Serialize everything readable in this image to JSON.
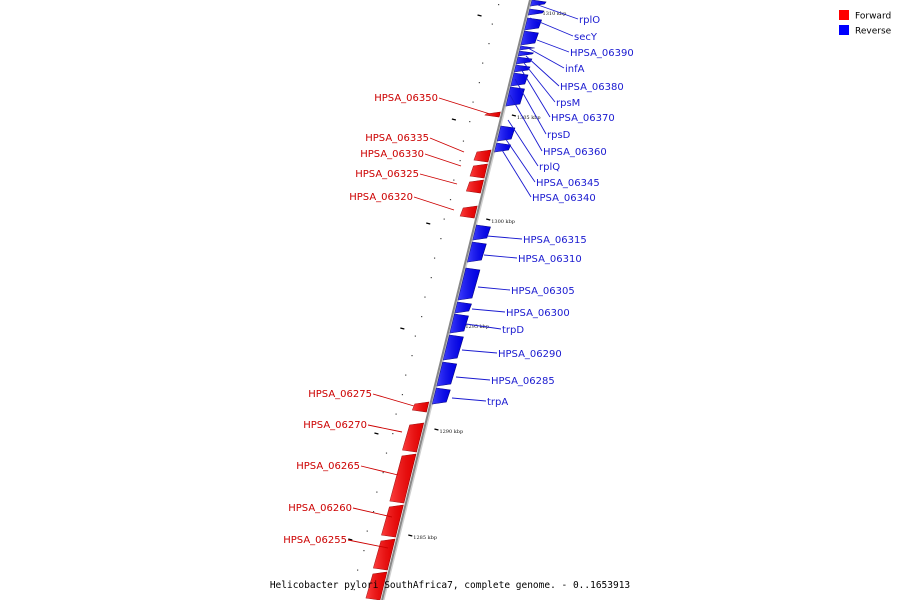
{
  "caption": "Helicobacter pylori SouthAfrica7, complete genome. - 0..1653913",
  "legend": [
    {
      "label": "Forward",
      "color": "#ff0000"
    },
    {
      "label": "Reverse",
      "color": "#0000ff"
    }
  ],
  "colors": {
    "forward": "#ff0000",
    "reverse": "#0000ff",
    "forward_label": "#cc0000",
    "reverse_label": "#1a1ad0",
    "axis": "#888888"
  },
  "ticks": [
    {
      "label": "1310 kbp",
      "kbp": 1310
    },
    {
      "label": "1305 kbp",
      "kbp": 1305
    },
    {
      "label": "1300 kbp",
      "kbp": 1300
    },
    {
      "label": "1295 kbp",
      "kbp": 1295
    },
    {
      "label": "1290 kbp",
      "kbp": 1290
    },
    {
      "label": "1285 kbp",
      "kbp": 1285
    }
  ],
  "reverse_genes": [
    "rplO",
    "secY",
    "HPSA_06390",
    "infA",
    "HPSA_06380",
    "rpsM",
    "HPSA_06370",
    "rpsD",
    "HPSA_06360",
    "rplQ",
    "HPSA_06345",
    "HPSA_06340",
    "HPSA_06315",
    "HPSA_06310",
    "HPSA_06305",
    "HPSA_06300",
    "trpD",
    "HPSA_06290",
    "HPSA_06285",
    "trpA"
  ],
  "forward_genes": [
    "HPSA_06350",
    "HPSA_06335",
    "HPSA_06330",
    "HPSA_06325",
    "HPSA_06320",
    "HPSA_06275",
    "HPSA_06270",
    "HPSA_06265",
    "HPSA_06260",
    "HPSA_06255"
  ]
}
